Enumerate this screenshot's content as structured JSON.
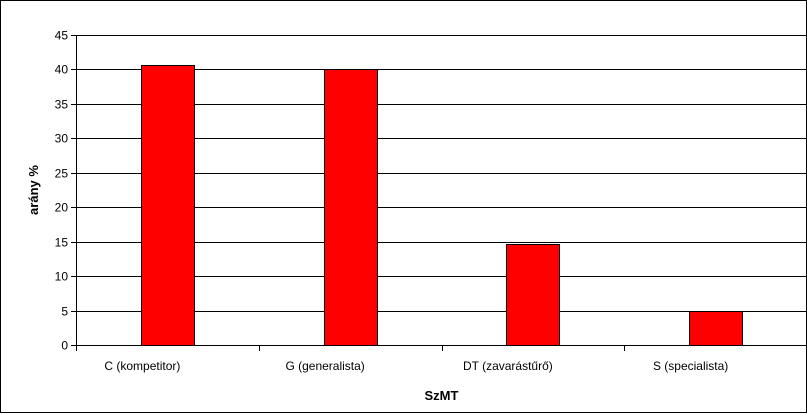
{
  "chart_data": {
    "type": "bar",
    "title": "",
    "xlabel": "SzMT",
    "ylabel": "arány %",
    "categories": [
      "C (kompetitor)",
      "G (generalista)",
      "DT (zavarástűrő)",
      "S (specialista)"
    ],
    "values": [
      40.6,
      40.1,
      14.6,
      4.9
    ],
    "ylim": [
      0,
      45
    ],
    "yticks": [
      0,
      5,
      10,
      15,
      20,
      25,
      30,
      35,
      40,
      45
    ],
    "grid": true,
    "legend": "none",
    "bar_color": "#FF0000",
    "bar_edge_color": "#000000"
  }
}
